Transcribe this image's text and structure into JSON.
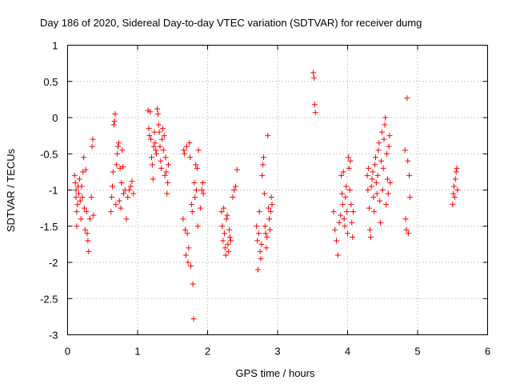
{
  "chart_data": {
    "type": "scatter",
    "title": "Day 186 of 2020, Sidereal Day-to-day VTEC variation (SDTVAR) for receiver dumg",
    "xlabel": "GPS time / hours",
    "ylabel": "SDTVAR / TECUs",
    "xlim": [
      0,
      6
    ],
    "ylim": [
      -3,
      1
    ],
    "xticks": [
      0,
      1,
      2,
      3,
      4,
      5,
      6
    ],
    "xtick_labels": [
      "0",
      "1",
      "2",
      "3",
      "4",
      "5",
      "6"
    ],
    "yticks": [
      1,
      0.5,
      0,
      -0.5,
      -1,
      -1.5,
      -2,
      -2.5,
      -3
    ],
    "ytick_labels": [
      "1",
      "0.5",
      "0",
      "-0.5",
      "-1",
      "-1.5",
      "-2",
      "-2.5",
      "-3"
    ],
    "grid": true,
    "marker": "+",
    "color": "#ff0000",
    "series": [
      {
        "name": "SDTVAR",
        "points": [
          [
            0.1,
            -0.8
          ],
          [
            0.11,
            -0.9
          ],
          [
            0.12,
            -1.0
          ],
          [
            0.12,
            -1.1
          ],
          [
            0.13,
            -1.3
          ],
          [
            0.13,
            -1.5
          ],
          [
            0.14,
            -1.2
          ],
          [
            0.15,
            -0.95
          ],
          [
            0.16,
            -1.05
          ],
          [
            0.17,
            -0.85
          ],
          [
            0.18,
            -1.15
          ],
          [
            0.19,
            -1.4
          ],
          [
            0.2,
            -0.95
          ],
          [
            0.21,
            -1.1
          ],
          [
            0.22,
            -0.75
          ],
          [
            0.23,
            -0.55
          ],
          [
            0.24,
            -1.25
          ],
          [
            0.25,
            -1.55
          ],
          [
            0.26,
            -0.72
          ],
          [
            0.27,
            -1.3
          ],
          [
            0.28,
            -1.6
          ],
          [
            0.29,
            -1.7
          ],
          [
            0.3,
            -1.85
          ],
          [
            0.32,
            -1.4
          ],
          [
            0.34,
            -1.1
          ],
          [
            0.35,
            -0.4
          ],
          [
            0.36,
            -0.3
          ],
          [
            0.37,
            -1.35
          ],
          [
            0.62,
            -1.3
          ],
          [
            0.63,
            -1.1
          ],
          [
            0.64,
            -0.95
          ],
          [
            0.65,
            -0.75
          ],
          [
            0.66,
            -0.1
          ],
          [
            0.67,
            -0.05
          ],
          [
            0.68,
            0.05
          ],
          [
            0.69,
            -1.2
          ],
          [
            0.7,
            -0.65
          ],
          [
            0.71,
            -0.5
          ],
          [
            0.72,
            -0.4
          ],
          [
            0.73,
            -0.35
          ],
          [
            0.74,
            -1.15
          ],
          [
            0.75,
            -0.7
          ],
          [
            0.76,
            -1.25
          ],
          [
            0.77,
            -0.9
          ],
          [
            0.78,
            -0.45
          ],
          [
            0.79,
            -0.68
          ],
          [
            0.8,
            -1.05
          ],
          [
            0.82,
            -1.0
          ],
          [
            0.84,
            -1.4
          ],
          [
            0.86,
            -1.1
          ],
          [
            0.88,
            -1.0
          ],
          [
            0.9,
            -0.95
          ],
          [
            0.92,
            -0.88
          ],
          [
            0.94,
            -1.05
          ],
          [
            1.15,
            0.1
          ],
          [
            1.16,
            -0.15
          ],
          [
            1.17,
            -0.25
          ],
          [
            1.18,
            0.08
          ],
          [
            1.19,
            -0.3
          ],
          [
            1.2,
            -0.55
          ],
          [
            1.21,
            -0.65
          ],
          [
            1.22,
            -0.85
          ],
          [
            1.23,
            -0.4
          ],
          [
            1.24,
            -0.2
          ],
          [
            1.25,
            -0.35
          ],
          [
            1.26,
            -0.45
          ],
          [
            1.27,
            -0.5
          ],
          [
            1.28,
            0.12
          ],
          [
            1.29,
            0.05
          ],
          [
            1.3,
            -0.1
          ],
          [
            1.31,
            -0.2
          ],
          [
            1.32,
            -0.4
          ],
          [
            1.33,
            -0.6
          ],
          [
            1.34,
            -0.7
          ],
          [
            1.35,
            -0.3
          ],
          [
            1.36,
            -0.15
          ],
          [
            1.37,
            -0.45
          ],
          [
            1.38,
            -0.25
          ],
          [
            1.39,
            -0.8
          ],
          [
            1.4,
            -0.55
          ],
          [
            1.41,
            -0.75
          ],
          [
            1.42,
            -1.05
          ],
          [
            1.43,
            -0.9
          ],
          [
            1.44,
            -0.65
          ],
          [
            1.65,
            -1.4
          ],
          [
            1.66,
            -0.45
          ],
          [
            1.67,
            -0.5
          ],
          [
            1.68,
            -1.55
          ],
          [
            1.69,
            -1.9
          ],
          [
            1.7,
            -0.4
          ],
          [
            1.71,
            -1.6
          ],
          [
            1.72,
            -2.0
          ],
          [
            1.73,
            -1.8
          ],
          [
            1.74,
            -0.35
          ],
          [
            1.75,
            -0.55
          ],
          [
            1.76,
            -2.05
          ],
          [
            1.77,
            -1.2
          ],
          [
            1.78,
            -1.3
          ],
          [
            1.79,
            -2.3
          ],
          [
            1.8,
            -2.78
          ],
          [
            1.81,
            -0.9
          ],
          [
            1.82,
            -1.1
          ],
          [
            1.83,
            -0.65
          ],
          [
            1.84,
            -1.0
          ],
          [
            1.85,
            -0.7
          ],
          [
            1.86,
            -1.5
          ],
          [
            1.87,
            -0.45
          ],
          [
            1.9,
            -1.25
          ],
          [
            1.92,
            -1.0
          ],
          [
            1.93,
            -0.9
          ],
          [
            1.94,
            -1.05
          ],
          [
            2.2,
            -1.3
          ],
          [
            2.21,
            -1.5
          ],
          [
            2.22,
            -1.7
          ],
          [
            2.23,
            -1.25
          ],
          [
            2.24,
            -1.6
          ],
          [
            2.25,
            -1.8
          ],
          [
            2.26,
            -1.9
          ],
          [
            2.27,
            -1.4
          ],
          [
            2.28,
            -1.35
          ],
          [
            2.29,
            -1.75
          ],
          [
            2.3,
            -1.85
          ],
          [
            2.31,
            -1.55
          ],
          [
            2.32,
            -1.65
          ],
          [
            2.33,
            -1.7
          ],
          [
            2.36,
            -1.1
          ],
          [
            2.38,
            -1.0
          ],
          [
            2.4,
            -0.95
          ],
          [
            2.42,
            -0.72
          ],
          [
            2.7,
            -1.5
          ],
          [
            2.71,
            -1.7
          ],
          [
            2.72,
            -2.1
          ],
          [
            2.73,
            -1.6
          ],
          [
            2.74,
            -1.3
          ],
          [
            2.75,
            -1.85
          ],
          [
            2.76,
            -1.95
          ],
          [
            2.77,
            -1.75
          ],
          [
            2.78,
            -0.8
          ],
          [
            2.79,
            -0.65
          ],
          [
            2.8,
            -0.55
          ],
          [
            2.81,
            -1.05
          ],
          [
            2.82,
            -1.5
          ],
          [
            2.83,
            -1.6
          ],
          [
            2.84,
            -1.8
          ],
          [
            2.85,
            -1.65
          ],
          [
            2.86,
            -0.25
          ],
          [
            2.87,
            -1.25
          ],
          [
            2.88,
            -1.4
          ],
          [
            2.89,
            -1.55
          ],
          [
            2.9,
            -1.3
          ],
          [
            2.91,
            -1.1
          ],
          [
            2.92,
            -1.2
          ],
          [
            3.51,
            0.62
          ],
          [
            3.52,
            0.55
          ],
          [
            3.53,
            0.18
          ],
          [
            3.54,
            0.07
          ],
          [
            3.8,
            -1.3
          ],
          [
            3.82,
            -1.55
          ],
          [
            3.84,
            -1.7
          ],
          [
            3.86,
            -1.9
          ],
          [
            3.88,
            -1.45
          ],
          [
            3.9,
            -1.35
          ],
          [
            3.91,
            -0.8
          ],
          [
            3.92,
            -1.05
          ],
          [
            3.93,
            -1.2
          ],
          [
            3.94,
            -0.75
          ],
          [
            3.95,
            -1.4
          ],
          [
            3.96,
            -1.5
          ],
          [
            3.97,
            -1.1
          ],
          [
            3.98,
            -0.95
          ],
          [
            3.99,
            -1.3
          ],
          [
            4.0,
            -1.6
          ],
          [
            4.01,
            -0.55
          ],
          [
            4.02,
            -0.7
          ],
          [
            4.03,
            -1.0
          ],
          [
            4.04,
            -0.6
          ],
          [
            4.05,
            -1.2
          ],
          [
            4.06,
            -1.45
          ],
          [
            4.07,
            -1.65
          ],
          [
            4.08,
            -1.3
          ],
          [
            4.28,
            -0.8
          ],
          [
            4.29,
            -1.0
          ],
          [
            4.3,
            -0.7
          ],
          [
            4.31,
            -1.25
          ],
          [
            4.32,
            -1.55
          ],
          [
            4.33,
            -1.65
          ],
          [
            4.34,
            -0.95
          ],
          [
            4.35,
            -0.85
          ],
          [
            4.36,
            -0.75
          ],
          [
            4.37,
            -1.1
          ],
          [
            4.38,
            -1.3
          ],
          [
            4.39,
            -0.65
          ],
          [
            4.4,
            -0.55
          ],
          [
            4.41,
            -0.9
          ],
          [
            4.42,
            -1.05
          ],
          [
            4.43,
            -0.8
          ],
          [
            4.44,
            -0.45
          ],
          [
            4.45,
            -0.35
          ],
          [
            4.46,
            -1.15
          ],
          [
            4.47,
            -1.45
          ],
          [
            4.48,
            -0.6
          ],
          [
            4.49,
            -0.2
          ],
          [
            4.5,
            -1.0
          ],
          [
            4.51,
            -0.7
          ],
          [
            4.52,
            -0.3
          ],
          [
            4.53,
            -0.1
          ],
          [
            4.54,
            0.0
          ],
          [
            4.55,
            -1.2
          ],
          [
            4.56,
            -0.5
          ],
          [
            4.57,
            -0.85
          ],
          [
            4.58,
            -1.05
          ],
          [
            4.59,
            -0.4
          ],
          [
            4.6,
            -0.25
          ],
          [
            4.61,
            -0.9
          ],
          [
            4.82,
            -0.45
          ],
          [
            4.83,
            -1.4
          ],
          [
            4.84,
            -1.55
          ],
          [
            4.85,
            0.27
          ],
          [
            4.86,
            -0.6
          ],
          [
            4.87,
            -1.6
          ],
          [
            4.88,
            -0.8
          ],
          [
            4.89,
            -1.1
          ],
          [
            5.5,
            -1.2
          ],
          [
            5.51,
            -1.05
          ],
          [
            5.52,
            -0.95
          ],
          [
            5.53,
            -1.1
          ],
          [
            5.54,
            -0.85
          ],
          [
            5.55,
            -0.75
          ],
          [
            5.56,
            -0.7
          ],
          [
            5.57,
            -1.0
          ]
        ]
      }
    ]
  }
}
